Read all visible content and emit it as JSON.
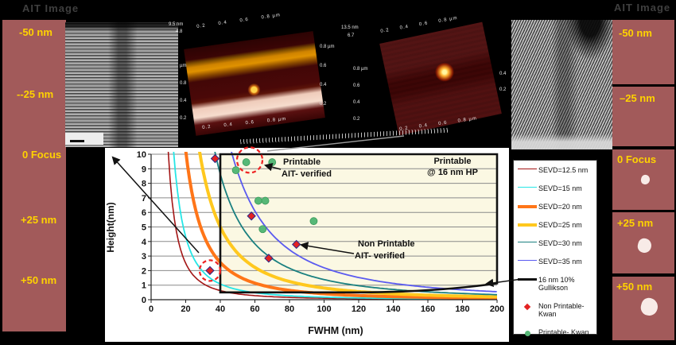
{
  "titles": {
    "left_ait": "AIT Image",
    "right_ait": "AIT Image"
  },
  "colors": {
    "figure_bg": "#000000",
    "panel_bg": "#a25a5a",
    "panel_label": "#ffd300",
    "chart_bg": "#ffffff",
    "region_fill": "#fbf8e3",
    "highlight_circle": "#ee2222",
    "blob": "#f8ebe7"
  },
  "left_panel": {
    "labels": [
      "-50 nm",
      "--25 nm",
      "0 Focus",
      "+25 nm",
      "+50 nm"
    ]
  },
  "right_panel": {
    "segments": [
      {
        "label": "-50 nm",
        "blob": 0
      },
      {
        "label": "–25 nm",
        "blob": 0
      },
      {
        "label": "0 Focus",
        "blob": 11
      },
      {
        "label": "+25 nm",
        "blob": 17
      },
      {
        "label": "+50 nm",
        "blob": 21
      }
    ]
  },
  "afm1": {
    "z_max": "9.5 nm",
    "z_mid": "4.8",
    "axis_top": "0.2      0.4      0.6      0.8 µm",
    "axis_bottom": "0.2      0.4      0.6      0.8 µm",
    "axis_left": [
      "µm",
      "0.8",
      "0.4",
      "0.2"
    ],
    "axis_right": [
      "0.8 µm",
      "0.6",
      "0.4",
      "0.2"
    ]
  },
  "afm2": {
    "z_max": "13.5 nm",
    "z_mid": "6.7",
    "axis_top": "0.2     0.4     0.6     0.8 µm",
    "axis_bottom": "0.2     0.4     0.6     0.8 µm",
    "axis_left": [
      "0.8 µm",
      "0.6",
      "0.4",
      "0.2"
    ],
    "axis_right": [
      "0.4",
      "0.2"
    ]
  },
  "chart_data": {
    "type": "scatter",
    "xlabel": "FWHM (nm)",
    "ylabel": "Height(nm)",
    "xlim": [
      0,
      200
    ],
    "ylim": [
      0,
      10
    ],
    "xticks": [
      0,
      20,
      40,
      60,
      80,
      100,
      120,
      140,
      160,
      180,
      200
    ],
    "yticks": [
      0,
      1,
      2,
      3,
      4,
      5,
      6,
      7,
      8,
      9,
      10
    ],
    "grid": "horizontal",
    "region": {
      "x_start": 40,
      "x_end": 200,
      "fill": "#fbf8e3"
    },
    "curves": [
      {
        "label": "SEVD=12.5 nm",
        "sevd": 12.5,
        "color": "#a31515",
        "width": 1.6
      },
      {
        "label": "SEVD=15 nm",
        "sevd": 15,
        "color": "#25e6e6",
        "width": 1.8
      },
      {
        "label": "SEVD=20 nm",
        "sevd": 20,
        "color": "#ff7518",
        "width": 4
      },
      {
        "label": "SEVD=25 nm",
        "sevd": 25,
        "color": "#ffc81e",
        "width": 4
      },
      {
        "label": "SEVD=30 nm",
        "sevd": 30,
        "color": "#1a8080",
        "width": 1.8
      },
      {
        "label": "SEVD=35 nm",
        "sevd": 35,
        "color": "#5a5af0",
        "width": 1.8
      }
    ],
    "threshold_curve": {
      "label": "16 nm 10%\nGullikson",
      "color": "#111111",
      "width": 2.6
    },
    "series": [
      {
        "name": "Non Printable-\nKwan",
        "marker": "diamond",
        "color": "#e32222",
        "edge": "#2a2a8a",
        "points": [
          [
            37,
            9.7
          ],
          [
            34,
            2.0
          ],
          [
            58,
            5.75
          ],
          [
            68,
            2.85
          ],
          [
            84,
            3.8
          ]
        ]
      },
      {
        "name": "Printable- Kwan",
        "marker": "circle",
        "color": "#57b877",
        "edge": "#3a9a5a",
        "points": [
          [
            49,
            8.9
          ],
          [
            55,
            9.45
          ],
          [
            70,
            9.45
          ],
          [
            62,
            6.8
          ],
          [
            66,
            6.8
          ],
          [
            64.5,
            4.85
          ],
          [
            94,
            5.4
          ]
        ]
      }
    ],
    "annotations": [
      {
        "line1": "Printable",
        "line2": "AIT- verified",
        "target": [
          55,
          9.45
        ]
      },
      {
        "line1": "Printable",
        "line2": "@ 16 nm HP",
        "target": null
      },
      {
        "line1": "Non Printable",
        "line2": "AIT- verified",
        "target": [
          84,
          3.8
        ]
      }
    ],
    "highlight_circles": [
      {
        "x": 57,
        "y": 9.6,
        "r": 16
      },
      {
        "x": 34,
        "y": 2.0,
        "r": 13
      }
    ]
  }
}
